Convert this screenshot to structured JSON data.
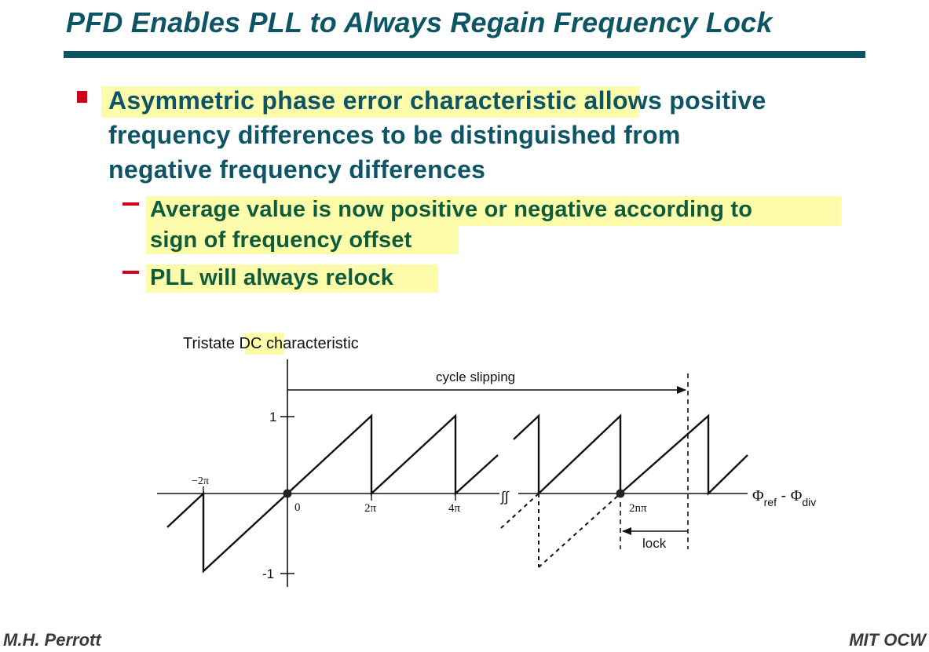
{
  "slide": {
    "title": "PFD Enables PLL to Always Regain Frequency Lock"
  },
  "bullets": {
    "main_highlight": "Asymmetric phase error characteristic",
    "main_rest_line1": " allows positive",
    "main_line2": "frequency differences to be distinguished from",
    "main_line3": "negative frequency differences",
    "sub1_line1": "Average value is now positive or negative according to",
    "sub1_line2": "sign of frequency offset",
    "sub2": "PLL will always relock"
  },
  "figure": {
    "caption_before": "Tristate ",
    "caption_highlight": "DC",
    "caption_after": " characteristic",
    "arrow_top_label": "cycle slipping",
    "arrow_bottom_label": "lock",
    "y_tick_top": "1",
    "y_tick_bottom": "-1",
    "x_tick_neg2pi": "−2π",
    "x_tick_zero": "0",
    "x_tick_2pi": "2π",
    "x_tick_4pi": "4π",
    "x_tick_2npi": "2nπ",
    "axis_phi1": "Φ",
    "axis_sub_ref": "ref",
    "axis_minus": " - ",
    "axis_phi2": "Φ",
    "axis_sub_div": "div",
    "break_symbol": "∫∫"
  },
  "footer": {
    "author": "M.H. Perrott",
    "source": "MIT OCW"
  },
  "colors": {
    "title": "#0d5465",
    "bullet_marker": "#d0021b",
    "highlight": "#fdfcaa",
    "sub_text": "#0e5c3c"
  }
}
